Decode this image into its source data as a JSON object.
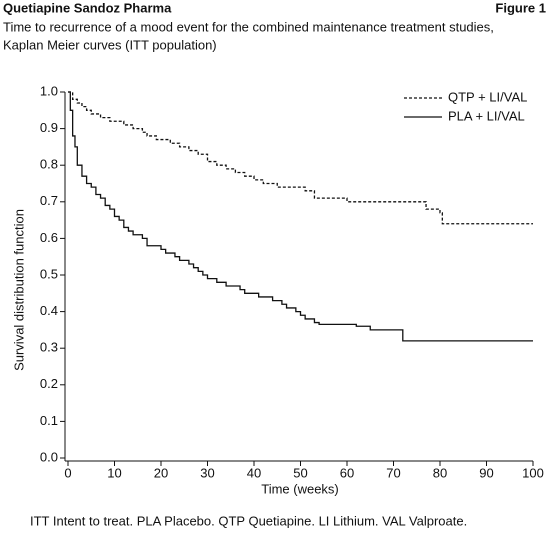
{
  "header": {
    "left": "Quetiapine Sandoz Pharma",
    "right": "Figure 1"
  },
  "chart_data": {
    "type": "line",
    "step": true,
    "subtitle": [
      "Time to recurrence of a mood event for the combined maintenance treatment studies,",
      "Kaplan Meier curves (ITT population)"
    ],
    "x_label": "Time (weeks)",
    "y_label": "Survival distribution function",
    "xlim": [
      0,
      100
    ],
    "ylim": [
      0,
      1
    ],
    "xticks": [
      0,
      10,
      20,
      30,
      40,
      50,
      60,
      70,
      80,
      90,
      100
    ],
    "yticks": [
      {
        "value": 0,
        "label": "0.0"
      },
      {
        "value": 0.1,
        "label": "0.1"
      },
      {
        "value": 0.2,
        "label": "0.2"
      },
      {
        "value": 0.3,
        "label": "0.3"
      },
      {
        "value": 0.4,
        "label": "0.4"
      },
      {
        "value": 0.5,
        "label": "0.5"
      },
      {
        "value": 0.6,
        "label": "0.6"
      },
      {
        "value": 0.7,
        "label": "0.7"
      },
      {
        "value": 0.8,
        "label": "0.8"
      },
      {
        "value": 0.9,
        "label": "0.9"
      },
      {
        "value": 1,
        "label": "1.0"
      }
    ],
    "grid": false,
    "legend": "upper right",
    "series": [
      {
        "name": "QTP + LI/VAL",
        "color": "#111111",
        "dash": true,
        "x": [
          0,
          1,
          2,
          3,
          4,
          5,
          7,
          9,
          12,
          14,
          16,
          17,
          19,
          22,
          24,
          26,
          28,
          30,
          32,
          34,
          36,
          38,
          40,
          42,
          45,
          50,
          51,
          53,
          59,
          60,
          68,
          77,
          80,
          80.5,
          100
        ],
        "values": [
          1.0,
          0.98,
          0.97,
          0.96,
          0.95,
          0.94,
          0.93,
          0.92,
          0.91,
          0.9,
          0.89,
          0.88,
          0.87,
          0.86,
          0.85,
          0.84,
          0.83,
          0.81,
          0.8,
          0.79,
          0.78,
          0.77,
          0.76,
          0.75,
          0.74,
          0.74,
          0.73,
          0.71,
          0.71,
          0.7,
          0.7,
          0.68,
          0.67,
          0.64,
          0.64
        ]
      },
      {
        "name": "PLA + LI/VAL",
        "color": "#111111",
        "dash": false,
        "x": [
          0,
          0.5,
          1,
          1.5,
          2,
          3,
          4,
          5,
          6,
          7,
          8,
          9,
          10,
          11,
          12,
          13,
          14,
          16,
          17,
          20,
          21,
          23,
          24,
          26,
          27,
          28,
          29,
          30,
          32,
          34,
          37,
          38,
          41,
          44,
          46,
          47,
          49,
          50,
          51,
          53,
          54,
          62,
          65,
          72,
          100
        ],
        "values": [
          1.0,
          0.95,
          0.88,
          0.85,
          0.8,
          0.77,
          0.75,
          0.74,
          0.72,
          0.71,
          0.69,
          0.68,
          0.66,
          0.65,
          0.63,
          0.62,
          0.61,
          0.6,
          0.58,
          0.57,
          0.56,
          0.55,
          0.54,
          0.53,
          0.52,
          0.51,
          0.5,
          0.49,
          0.48,
          0.47,
          0.46,
          0.45,
          0.44,
          0.43,
          0.42,
          0.41,
          0.4,
          0.39,
          0.38,
          0.37,
          0.365,
          0.36,
          0.35,
          0.32,
          0.32
        ]
      }
    ]
  },
  "footnote": "ITT Intent to treat. PLA Placebo. QTP Quetiapine. LI Lithium. VAL Valproate."
}
